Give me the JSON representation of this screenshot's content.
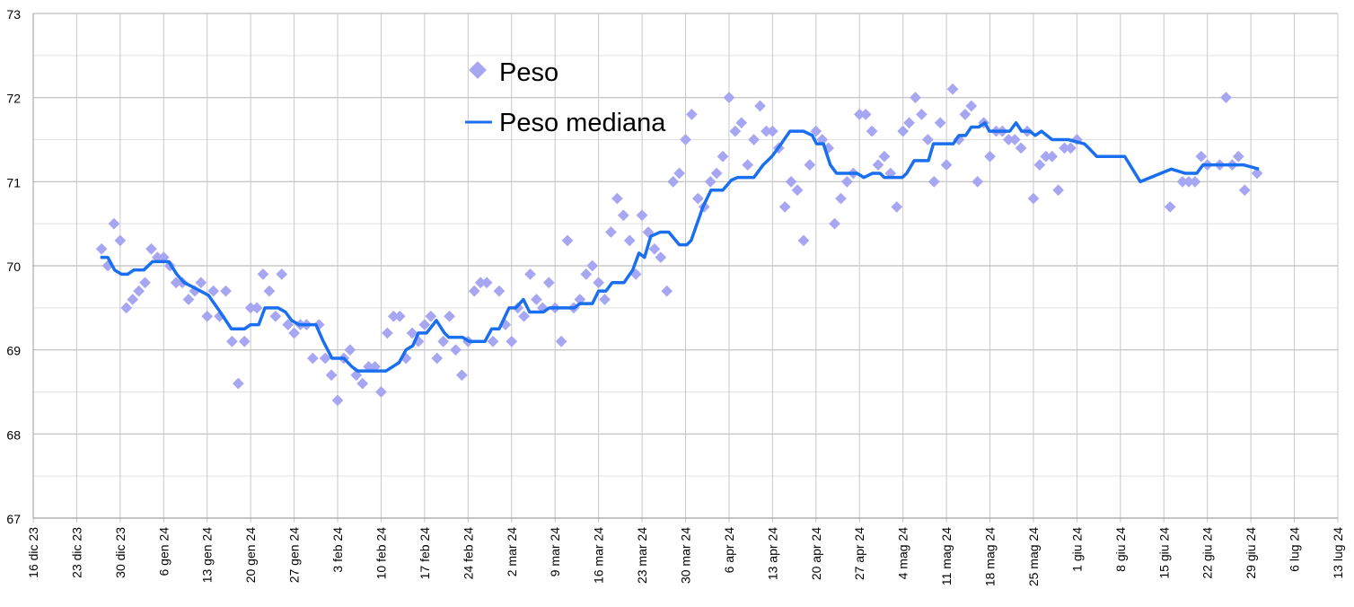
{
  "chart_data": {
    "type": "scatter",
    "title": "",
    "xlabel": "",
    "ylabel": "",
    "x_units": "days since 16 dic 23",
    "xlim": [
      0,
      210
    ],
    "ylim": [
      67,
      73
    ],
    "y_ticks": [
      "67",
      "68",
      "69",
      "70",
      "71",
      "72",
      "73"
    ],
    "y_minor_step": 0.5,
    "x_tick_labels": [
      "16 dic 23",
      "23 dic 23",
      "30 dic 23",
      "6 gen 24",
      "13 gen 24",
      "20 gen 24",
      "27 gen 24",
      "3 feb 24",
      "10 feb 24",
      "17 feb 24",
      "24 feb 24",
      "2 mar 24",
      "9 mar 24",
      "16 mar 24",
      "23 mar 24",
      "30 mar 24",
      "6 apr 24",
      "13 apr 24",
      "20 apr 24",
      "27 apr 24",
      "4 mag 24",
      "11 mag 24",
      "18 mag 24",
      "25 mag 24",
      "1 giu 24",
      "8 giu 24",
      "15 giu 24",
      "22 giu 24",
      "29 giu 24",
      "6 lug 24",
      "13 lug 24"
    ],
    "x_tick_step_days": 7,
    "grid": true,
    "legend_position": "top-center",
    "colors": {
      "peso": "#a6a6f2",
      "mediana": "#1a6ff0",
      "grid": "#c8c8c8"
    },
    "series": [
      {
        "name": "Peso",
        "kind": "scatter",
        "daily_start_day": 11,
        "daily_values": [
          70.2,
          70.0,
          70.5,
          70.3,
          69.5,
          69.6,
          69.7,
          69.8,
          70.2,
          70.1,
          70.1,
          70.0,
          69.8,
          69.8,
          69.6,
          69.7,
          69.8,
          69.4,
          69.7,
          69.4,
          69.7,
          69.1,
          68.6,
          69.1,
          69.5,
          69.5,
          69.9,
          69.7,
          69.4,
          69.9,
          69.3,
          69.2,
          69.3,
          69.3,
          68.9,
          69.3,
          68.9,
          68.7,
          68.4,
          68.9,
          69.0,
          68.7,
          68.6,
          68.8,
          68.8,
          68.5,
          69.2,
          69.4,
          69.4,
          68.9,
          69.2,
          69.1,
          69.3,
          69.4,
          68.9,
          69.1,
          69.4,
          69.0,
          68.7,
          69.1,
          69.7,
          69.8,
          69.8,
          69.1,
          69.7,
          69.3,
          69.1,
          69.5,
          69.4,
          69.9,
          69.6,
          69.5,
          69.8,
          69.5,
          69.1,
          70.3,
          69.5,
          69.6,
          69.9,
          70.0,
          69.8,
          69.6,
          70.4,
          70.8,
          70.6,
          70.3,
          69.9,
          70.6,
          70.4,
          70.2,
          70.1,
          69.7,
          71.0,
          71.1,
          71.5,
          71.8,
          70.8,
          70.7,
          71.0,
          71.1,
          71.3,
          72.0,
          71.6,
          71.7,
          71.2,
          71.5,
          71.9,
          71.6,
          71.6,
          71.4,
          70.7,
          71.0,
          70.9,
          70.3,
          71.2,
          71.6,
          71.5,
          71.4,
          70.5,
          70.8,
          71.0,
          71.1,
          71.8,
          71.8,
          71.6,
          71.2,
          71.3,
          71.1,
          70.7,
          71.6,
          71.7,
          72.0,
          71.8,
          71.5,
          71.0,
          71.7,
          71.2,
          72.1,
          71.5,
          71.8,
          71.9,
          71.0,
          71.7,
          71.3,
          71.6,
          71.6,
          71.5,
          71.5,
          71.4,
          71.6,
          70.8,
          71.2,
          71.3,
          71.3,
          70.9,
          71.4,
          71.4,
          71.5
        ],
        "extra_points": [
          [
            183,
            70.7
          ],
          [
            185,
            71.0
          ],
          [
            186,
            71.0
          ],
          [
            187,
            71.0
          ],
          [
            188,
            71.3
          ],
          [
            189,
            71.2
          ],
          [
            191,
            71.2
          ],
          [
            192,
            72.0
          ],
          [
            193,
            71.2
          ],
          [
            194,
            71.3
          ],
          [
            195,
            70.9
          ],
          [
            197,
            71.1
          ]
        ]
      },
      {
        "name": "Peso mediana",
        "kind": "line",
        "points": [
          [
            10.8,
            70.1
          ],
          [
            12.0,
            70.1
          ],
          [
            13.1,
            69.95
          ],
          [
            14.2,
            69.9
          ],
          [
            15.2,
            69.9
          ],
          [
            16.2,
            69.95
          ],
          [
            17.8,
            69.95
          ],
          [
            19.2,
            70.05
          ],
          [
            21.8,
            70.05
          ],
          [
            23.1,
            69.9
          ],
          [
            24.3,
            69.8
          ],
          [
            26.4,
            69.72
          ],
          [
            28.2,
            69.65
          ],
          [
            30.1,
            69.45
          ],
          [
            31.9,
            69.25
          ],
          [
            34.0,
            69.25
          ],
          [
            35.0,
            69.3
          ],
          [
            36.3,
            69.3
          ],
          [
            37.3,
            69.5
          ],
          [
            39.4,
            69.5
          ],
          [
            40.6,
            69.45
          ],
          [
            41.6,
            69.35
          ],
          [
            42.8,
            69.3
          ],
          [
            45.5,
            69.3
          ],
          [
            46.7,
            69.1
          ],
          [
            48.1,
            68.9
          ],
          [
            50.0,
            68.9
          ],
          [
            51.3,
            68.8
          ],
          [
            52.2,
            68.75
          ],
          [
            56.8,
            68.75
          ],
          [
            58.9,
            68.85
          ],
          [
            60.0,
            69.0
          ],
          [
            61.1,
            69.05
          ],
          [
            62.0,
            69.2
          ],
          [
            63.3,
            69.2
          ],
          [
            64.9,
            69.35
          ],
          [
            66.2,
            69.2
          ],
          [
            66.9,
            69.15
          ],
          [
            69.1,
            69.15
          ],
          [
            70.2,
            69.1
          ],
          [
            72.7,
            69.1
          ],
          [
            73.8,
            69.25
          ],
          [
            75.0,
            69.25
          ],
          [
            76.6,
            69.5
          ],
          [
            77.7,
            69.5
          ],
          [
            78.9,
            69.6
          ],
          [
            79.9,
            69.45
          ],
          [
            82.1,
            69.45
          ],
          [
            83.1,
            69.5
          ],
          [
            87.1,
            69.5
          ],
          [
            88.0,
            69.55
          ],
          [
            90.0,
            69.55
          ],
          [
            91.0,
            69.7
          ],
          [
            92.2,
            69.7
          ],
          [
            93.2,
            69.8
          ],
          [
            95.1,
            69.8
          ],
          [
            96.5,
            69.95
          ],
          [
            97.5,
            70.15
          ],
          [
            98.4,
            70.1
          ],
          [
            99.4,
            70.35
          ],
          [
            100.9,
            70.4
          ],
          [
            102.3,
            70.4
          ],
          [
            104.0,
            70.25
          ],
          [
            105.2,
            70.25
          ],
          [
            105.9,
            70.3
          ],
          [
            107.8,
            70.7
          ],
          [
            109.1,
            70.9
          ],
          [
            111.0,
            70.9
          ],
          [
            112.4,
            71.02
          ],
          [
            113.4,
            71.05
          ],
          [
            116.0,
            71.05
          ],
          [
            117.5,
            71.2
          ],
          [
            118.9,
            71.3
          ],
          [
            120.4,
            71.45
          ],
          [
            121.8,
            71.6
          ],
          [
            124.0,
            71.6
          ],
          [
            125.4,
            71.55
          ],
          [
            126.1,
            71.45
          ],
          [
            127.2,
            71.45
          ],
          [
            128.3,
            71.2
          ],
          [
            129.3,
            71.1
          ],
          [
            132.6,
            71.1
          ],
          [
            133.7,
            71.05
          ],
          [
            135.1,
            71.1
          ],
          [
            136.3,
            71.1
          ],
          [
            137.0,
            71.05
          ],
          [
            139.9,
            71.05
          ],
          [
            140.6,
            71.1
          ],
          [
            141.8,
            71.25
          ],
          [
            144.1,
            71.25
          ],
          [
            144.9,
            71.45
          ],
          [
            148.1,
            71.45
          ],
          [
            149.0,
            71.55
          ],
          [
            150.1,
            71.55
          ],
          [
            151.0,
            71.65
          ],
          [
            152.2,
            71.65
          ],
          [
            153.2,
            71.7
          ],
          [
            153.9,
            71.6
          ],
          [
            157.2,
            71.6
          ],
          [
            158.2,
            71.7
          ],
          [
            159.1,
            71.6
          ],
          [
            160.4,
            71.6
          ],
          [
            161.3,
            71.55
          ],
          [
            162.3,
            71.6
          ],
          [
            164.0,
            71.5
          ],
          [
            166.6,
            71.5
          ],
          [
            169.2,
            71.45
          ],
          [
            169.9,
            71.4
          ],
          [
            171.2,
            71.3
          ],
          [
            175.7,
            71.3
          ],
          [
            178.2,
            71.0
          ],
          [
            183.2,
            71.15
          ],
          [
            185.4,
            71.1
          ],
          [
            187.3,
            71.1
          ],
          [
            188.3,
            71.2
          ],
          [
            194.8,
            71.2
          ],
          [
            197.3,
            71.15
          ]
        ]
      }
    ],
    "legend": [
      "Peso",
      "Peso mediana"
    ]
  }
}
